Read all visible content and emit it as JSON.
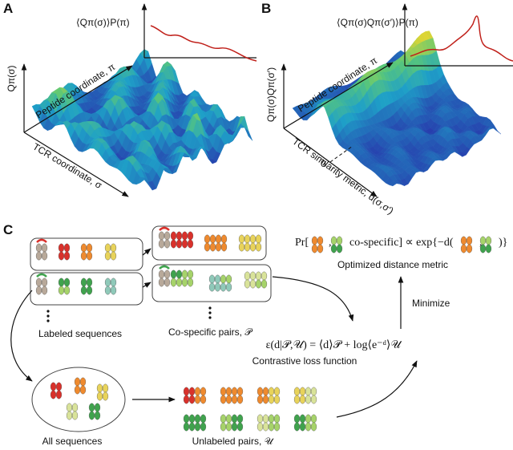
{
  "panels": {
    "A": {
      "label": "A",
      "inset_label": "⟨Qπ(σ)⟩P(π)",
      "z_label": "Qπ(σ)",
      "y_label": "Peptide coordinate, π",
      "x_label": "TCR coordinate, σ"
    },
    "B": {
      "label": "B",
      "inset_label": "⟨Qπ(σ)Qπ(σ′)⟩P(π)",
      "z_label": "Qπ(σ)Qπ(σ′)",
      "y_label": "Peptide coordinate, π",
      "x_label": "TCR similarity metric, d(σ,σ′)",
      "zero": "0"
    },
    "C": {
      "label": "C",
      "labeled": "Labeled sequences",
      "cospecific": "Co-specific pairs, 𝒫",
      "all": "All sequences",
      "unlabeled": "Unlabeled pairs, 𝒰",
      "formula_parts": [
        "Pr[",
        ",",
        "co-specific] ∝ exp{−d(",
        ",",
        ")}"
      ],
      "metric": "Optimized distance metric",
      "minimize": "Minimize",
      "loss": "ε(d|𝒫,𝒰) = ⟨d⟩𝒫 + log⟨e⁻ᵈ⟩𝒰",
      "loss_name": "Contrastive loss function"
    }
  }
}
